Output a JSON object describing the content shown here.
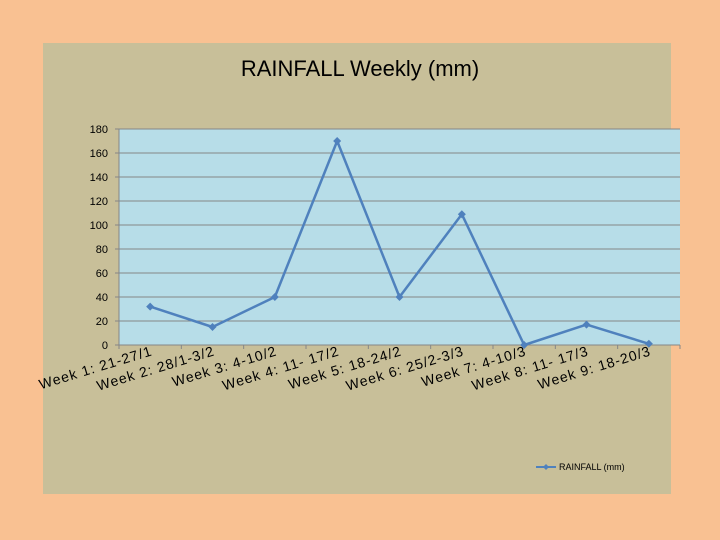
{
  "colors": {
    "page_background": "#f9c192",
    "chart_area": "#c8bf99",
    "plot_area": "#b7dde8",
    "series_line": "#4f81bd",
    "gridline": "#868686"
  },
  "chart_data": {
    "type": "line",
    "title": "RAINFALL Weekly (mm)",
    "xlabel": "",
    "ylabel": "",
    "categories": [
      "Week 1: 21-27/1",
      "Week 2: 28/1-3/2",
      "Week 3: 4-10/2",
      "Week 4: 11- 17/2",
      "Week 5: 18-24/2",
      "Week 6: 25/2-3/3",
      "Week 7: 4-10/3",
      "Week 8: 11- 17/3",
      "Week 9: 18-20/3"
    ],
    "series": [
      {
        "name": "RAINFALL (mm)",
        "values": [
          32,
          15,
          40,
          170,
          40,
          109,
          0,
          17,
          1
        ],
        "marker": "diamond"
      }
    ],
    "ylim": [
      0,
      180
    ],
    "yticks": [
      0,
      20,
      40,
      60,
      80,
      100,
      120,
      140,
      160,
      180
    ],
    "grid": true,
    "legend_position": "bottom-right"
  }
}
